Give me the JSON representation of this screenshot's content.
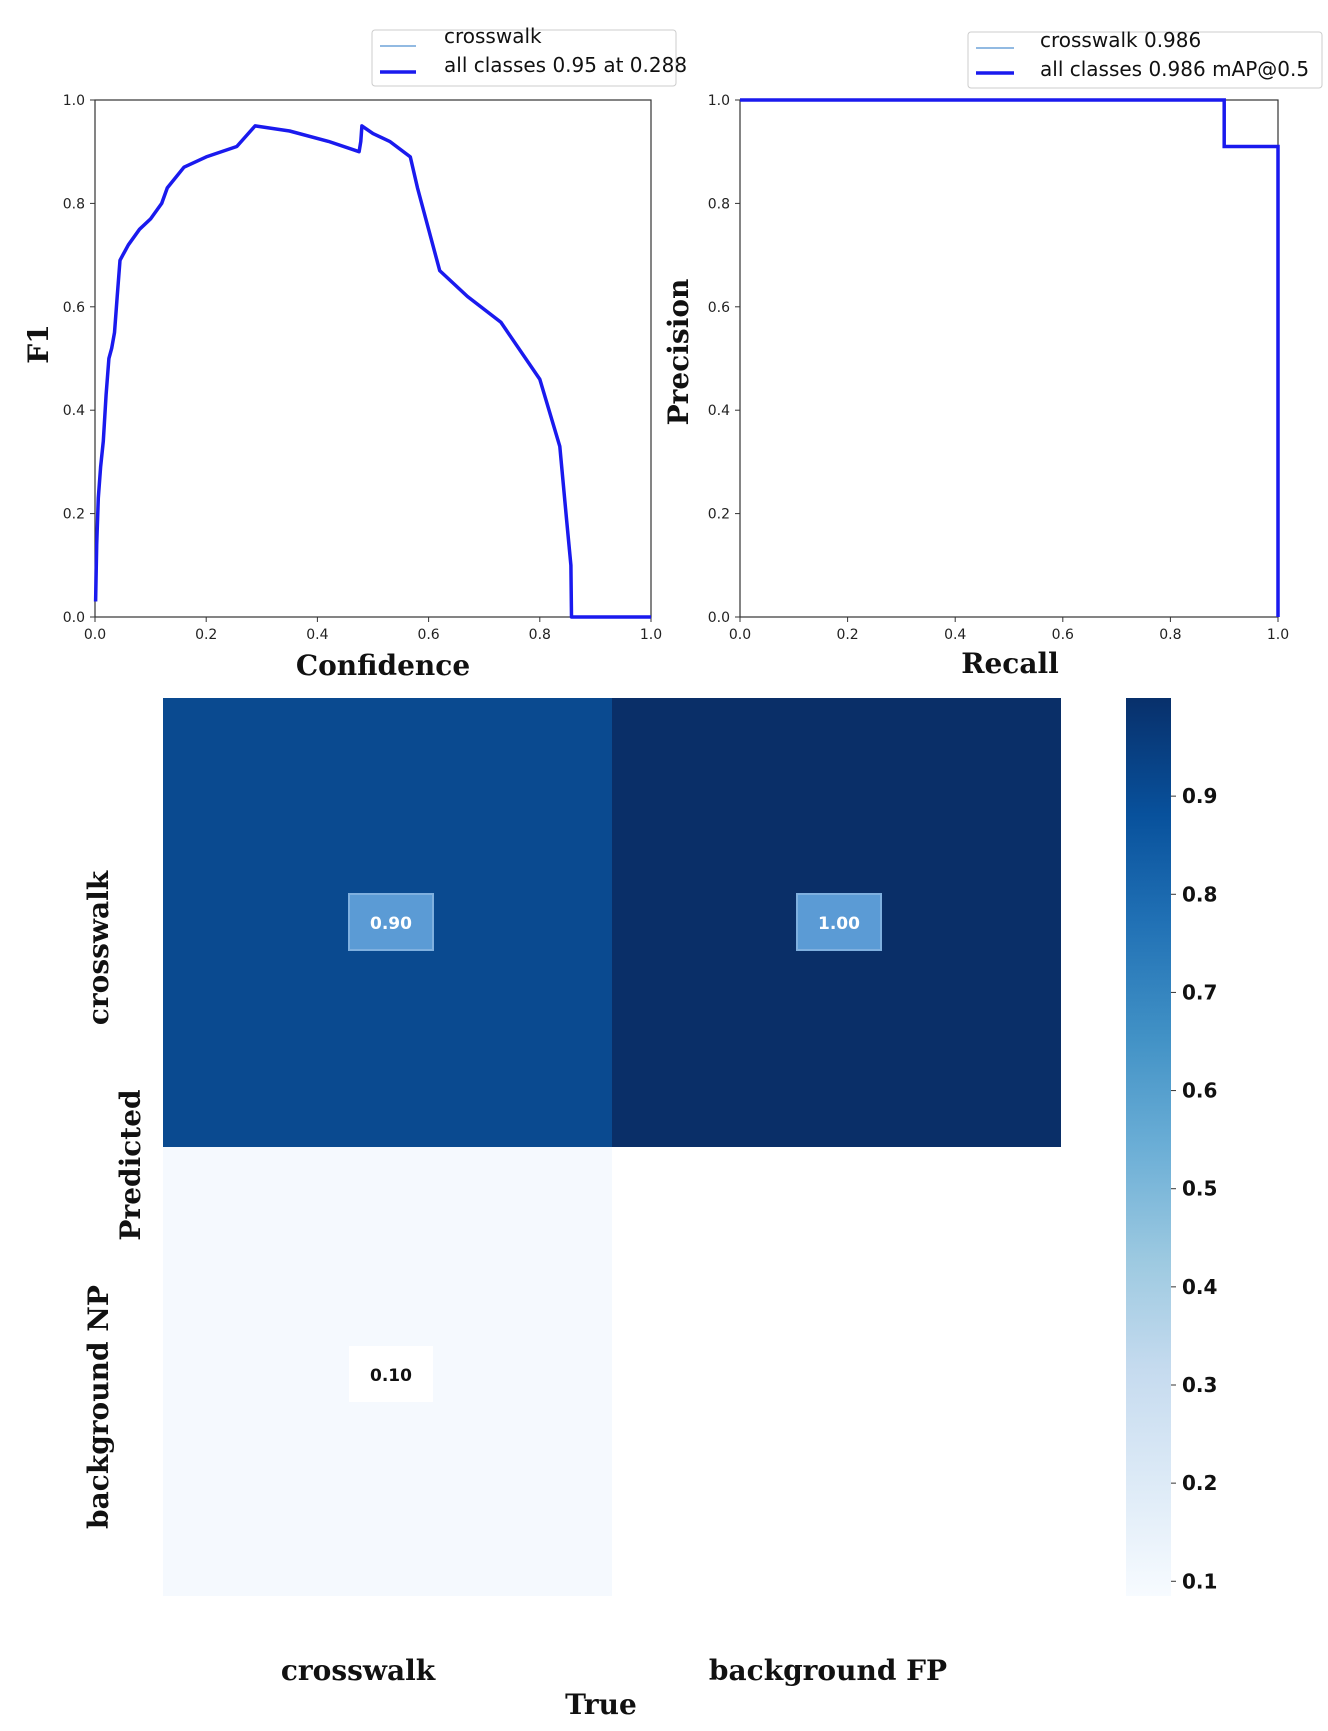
{
  "colors": {
    "curve": "#1a1aee",
    "class_line": "#6fa3d8",
    "cm_high": "#08306b",
    "cm_mid": "#08519c",
    "cm_low": "#f7fbff",
    "cell_box_dark": "#5b9bd5",
    "cell_box_light": "#ffffff"
  },
  "chart_data": [
    {
      "type": "line",
      "xlabel": "Confidence",
      "ylabel": "F1",
      "xlim": [
        0,
        1
      ],
      "ylim": [
        0,
        1
      ],
      "xticks": [
        "0.0",
        "0.2",
        "0.4",
        "0.6",
        "0.8",
        "1.0"
      ],
      "yticks": [
        "0.0",
        "0.2",
        "0.4",
        "0.6",
        "0.8",
        "1.0"
      ],
      "grid": false,
      "legend_position": "top-right-outside",
      "legend": [
        "crosswalk",
        "all classes 0.95 at 0.288"
      ],
      "series": [
        {
          "name": "all classes 0.95 at 0.288",
          "x": [
            0.001,
            0.003,
            0.006,
            0.01,
            0.015,
            0.02,
            0.025,
            0.03,
            0.035,
            0.04,
            0.045,
            0.05,
            0.06,
            0.08,
            0.1,
            0.12,
            0.13,
            0.16,
            0.2,
            0.255,
            0.288,
            0.35,
            0.42,
            0.475,
            0.478,
            0.48,
            0.5,
            0.53,
            0.567,
            0.58,
            0.6,
            0.62,
            0.67,
            0.73,
            0.8,
            0.836,
            0.848,
            0.856,
            0.857,
            0.9,
            0.95,
            1.0
          ],
          "y": [
            0.03,
            0.14,
            0.23,
            0.29,
            0.34,
            0.43,
            0.5,
            0.52,
            0.55,
            0.62,
            0.69,
            0.7,
            0.72,
            0.75,
            0.77,
            0.8,
            0.83,
            0.87,
            0.89,
            0.91,
            0.95,
            0.94,
            0.92,
            0.9,
            0.92,
            0.95,
            0.935,
            0.92,
            0.89,
            0.83,
            0.75,
            0.67,
            0.62,
            0.57,
            0.46,
            0.33,
            0.19,
            0.1,
            0.0,
            0.0,
            0.0,
            0.0
          ]
        }
      ]
    },
    {
      "type": "line",
      "xlabel": "Recall",
      "ylabel": "Precision",
      "xlim": [
        0,
        1
      ],
      "ylim": [
        0,
        1
      ],
      "xticks": [
        "0.0",
        "0.2",
        "0.4",
        "0.6",
        "0.8",
        "1.0"
      ],
      "yticks": [
        "0.0",
        "0.2",
        "0.4",
        "0.6",
        "0.8",
        "1.0"
      ],
      "grid": false,
      "legend_position": "top-right-outside",
      "legend": [
        "crosswalk 0.986",
        "all classes 0.986 mAP@0.5"
      ],
      "series": [
        {
          "name": "all classes 0.986 mAP@0.5",
          "x": [
            0.0,
            0.9,
            0.9,
            1.0,
            1.0
          ],
          "y": [
            1.0,
            1.0,
            0.91,
            0.91,
            0.0
          ]
        }
      ]
    },
    {
      "type": "heatmap",
      "xlabel": "True",
      "ylabel": "Predicted",
      "columns": [
        "crosswalk",
        "background FP"
      ],
      "rows": [
        "crosswalk",
        "background NP"
      ],
      "values": [
        [
          0.9,
          1.0
        ],
        [
          0.1,
          null
        ]
      ],
      "labels": [
        [
          "0.90",
          "1.00"
        ],
        [
          "0.10",
          ""
        ]
      ],
      "colorbar_ticks": [
        "0.9",
        "0.8",
        "0.7",
        "0.6",
        "0.5",
        "0.4",
        "0.3",
        "0.2",
        "0.1"
      ],
      "colorbar_tick_values": [
        0.9,
        0.8,
        0.7,
        0.6,
        0.5,
        0.4,
        0.3,
        0.2,
        0.1
      ]
    }
  ]
}
